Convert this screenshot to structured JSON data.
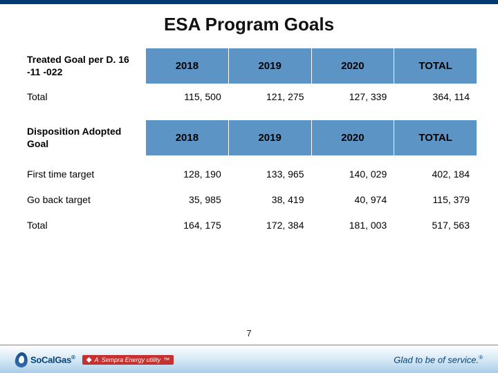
{
  "title": "ESA Program Goals",
  "colors": {
    "top_bar": "#003a6f",
    "header_bg": "#5b94c5",
    "logo_text": "#00437a",
    "sempra_bg": "#c53131",
    "tagline": "#00437a",
    "footer_gradient_top": "#ffffff",
    "footer_gradient_bottom": "#a9cde8"
  },
  "table1": {
    "corner_label": "Treated Goal per D. 16 -11 -022",
    "headers": [
      "2018",
      "2019",
      "2020",
      "TOTAL"
    ],
    "rows": [
      {
        "label": "Total",
        "values": [
          "115, 500",
          "121, 275",
          "127, 339",
          "364, 114"
        ]
      }
    ]
  },
  "table2": {
    "corner_label": "Disposition Adopted Goal",
    "headers": [
      "2018",
      "2019",
      "2020",
      "TOTAL"
    ],
    "rows": [
      {
        "label": "First time target",
        "values": [
          "128, 190",
          "133, 965",
          "140, 029",
          "402, 184"
        ]
      },
      {
        "label": "Go back target",
        "values": [
          "35, 985",
          "38, 419",
          "40, 974",
          "115, 379"
        ]
      },
      {
        "label": "Total",
        "values": [
          "164, 175",
          "172, 384",
          "181, 003",
          "517, 563"
        ]
      }
    ]
  },
  "footer": {
    "logo_text": "SoCalGas",
    "sempra_text": "Sempra Energy utility",
    "tagline": "Glad to be of service.",
    "page_number": "7"
  }
}
